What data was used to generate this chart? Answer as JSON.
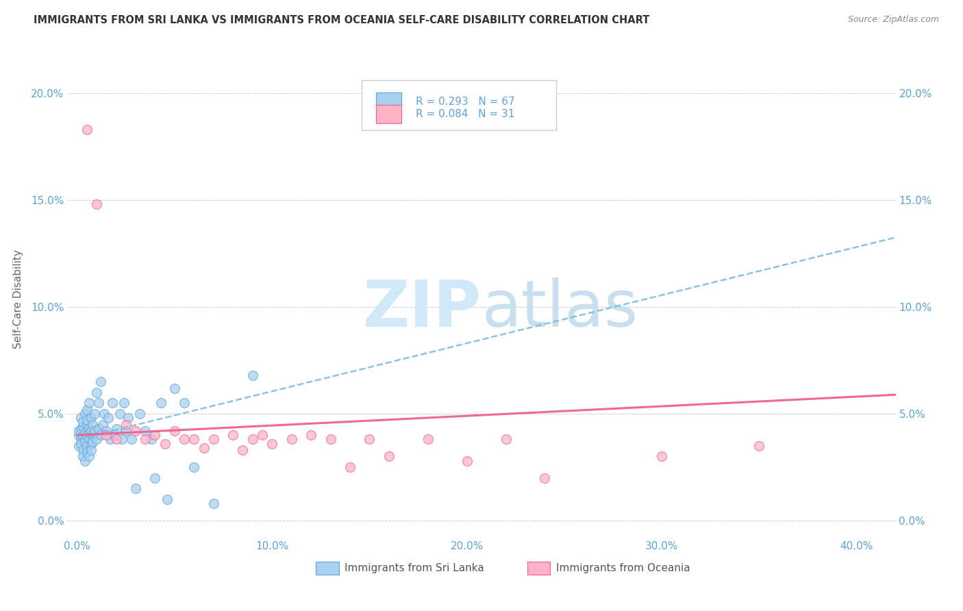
{
  "title": "IMMIGRANTS FROM SRI LANKA VS IMMIGRANTS FROM OCEANIA SELF-CARE DISABILITY CORRELATION CHART",
  "source": "Source: ZipAtlas.com",
  "ylabel": "Self-Care Disability",
  "x_tick_values": [
    0.0,
    0.1,
    0.2,
    0.3,
    0.4
  ],
  "y_tick_values": [
    0.0,
    0.05,
    0.1,
    0.15,
    0.2
  ],
  "xlim": [
    -0.005,
    0.42
  ],
  "ylim": [
    -0.008,
    0.215
  ],
  "legend_label_blue": "Immigrants from Sri Lanka",
  "legend_label_pink": "Immigrants from Oceania",
  "R_blue": 0.293,
  "N_blue": 67,
  "R_pink": 0.084,
  "N_pink": 31,
  "color_blue_fill": "#a8d0f0",
  "color_blue_edge": "#5ba3d9",
  "color_pink_fill": "#ffb3c6",
  "color_pink_edge": "#f06090",
  "color_blue_line": "#7bbde0",
  "color_pink_line": "#f06090",
  "color_axis": "#5ba3d9",
  "watermark_color": "#d0e8f8",
  "blue_trend_x0": 0.0,
  "blue_trend_y0": 0.038,
  "blue_trend_x1": 0.4,
  "blue_trend_y1": 0.128,
  "pink_trend_x0": 0.0,
  "pink_trend_y0": 0.04,
  "pink_trend_x1": 0.4,
  "pink_trend_y1": 0.058,
  "blue_scatter_x": [
    0.001,
    0.001,
    0.001,
    0.002,
    0.002,
    0.002,
    0.002,
    0.003,
    0.003,
    0.003,
    0.003,
    0.003,
    0.004,
    0.004,
    0.004,
    0.004,
    0.005,
    0.005,
    0.005,
    0.005,
    0.005,
    0.005,
    0.006,
    0.006,
    0.006,
    0.006,
    0.007,
    0.007,
    0.007,
    0.007,
    0.008,
    0.008,
    0.008,
    0.009,
    0.009,
    0.01,
    0.01,
    0.011,
    0.011,
    0.012,
    0.012,
    0.013,
    0.014,
    0.015,
    0.016,
    0.017,
    0.018,
    0.019,
    0.02,
    0.022,
    0.023,
    0.024,
    0.025,
    0.026,
    0.028,
    0.03,
    0.032,
    0.035,
    0.038,
    0.04,
    0.043,
    0.046,
    0.05,
    0.055,
    0.06,
    0.07,
    0.09
  ],
  "blue_scatter_y": [
    0.04,
    0.035,
    0.042,
    0.038,
    0.043,
    0.036,
    0.048,
    0.033,
    0.044,
    0.039,
    0.046,
    0.03,
    0.041,
    0.037,
    0.05,
    0.028,
    0.045,
    0.04,
    0.035,
    0.052,
    0.032,
    0.047,
    0.038,
    0.043,
    0.03,
    0.055,
    0.042,
    0.036,
    0.048,
    0.033,
    0.04,
    0.045,
    0.037,
    0.042,
    0.05,
    0.038,
    0.06,
    0.043,
    0.055,
    0.04,
    0.065,
    0.045,
    0.05,
    0.042,
    0.048,
    0.038,
    0.055,
    0.04,
    0.043,
    0.05,
    0.038,
    0.055,
    0.042,
    0.048,
    0.038,
    0.015,
    0.05,
    0.042,
    0.038,
    0.02,
    0.055,
    0.01,
    0.062,
    0.055,
    0.025,
    0.008,
    0.068
  ],
  "pink_scatter_x": [
    0.005,
    0.01,
    0.015,
    0.02,
    0.025,
    0.03,
    0.035,
    0.04,
    0.045,
    0.05,
    0.055,
    0.06,
    0.065,
    0.07,
    0.08,
    0.085,
    0.09,
    0.095,
    0.1,
    0.11,
    0.12,
    0.13,
    0.14,
    0.15,
    0.16,
    0.18,
    0.2,
    0.22,
    0.24,
    0.3,
    0.35
  ],
  "pink_scatter_y": [
    0.183,
    0.148,
    0.04,
    0.038,
    0.045,
    0.042,
    0.038,
    0.04,
    0.036,
    0.042,
    0.038,
    0.038,
    0.034,
    0.038,
    0.04,
    0.033,
    0.038,
    0.04,
    0.036,
    0.038,
    0.04,
    0.038,
    0.025,
    0.038,
    0.03,
    0.038,
    0.028,
    0.038,
    0.02,
    0.03,
    0.035
  ]
}
